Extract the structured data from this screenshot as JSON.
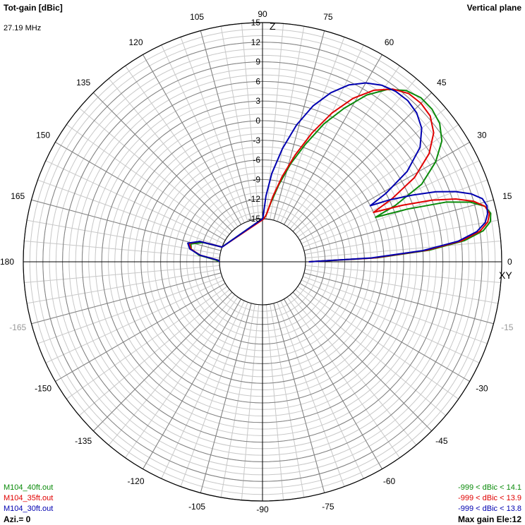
{
  "header": {
    "left_title": "Tot-gain [dBic]",
    "frequency": "27.19 MHz",
    "right_title": "Vertical plane"
  },
  "footer": {
    "azimuth": "Azi.= 0",
    "max_gain": "Max gain Ele:12"
  },
  "axis_letters": {
    "vertical": "Z",
    "horizontal": "XY"
  },
  "colors": {
    "green": "#0a8a0a",
    "red": "#e00000",
    "blue": "#0000b0",
    "grid": "#c8c8c8",
    "axis": "#000000",
    "faded_label": "#999999"
  },
  "chart_data": {
    "type": "polar",
    "radial_unit": "dBic",
    "radial_range": [
      -15,
      15
    ],
    "radial_ticks": [
      "-15",
      "-12",
      "-9",
      "-6",
      "-3",
      "0",
      "3",
      "6",
      "9",
      "12",
      "15"
    ],
    "angle_ticks": [
      {
        "deg": 0,
        "label": "0"
      },
      {
        "deg": 15,
        "label": "15"
      },
      {
        "deg": 30,
        "label": "30"
      },
      {
        "deg": 45,
        "label": "45"
      },
      {
        "deg": 60,
        "label": "60"
      },
      {
        "deg": 75,
        "label": "75"
      },
      {
        "deg": 90,
        "label": "90"
      },
      {
        "deg": 105,
        "label": "105"
      },
      {
        "deg": 120,
        "label": "120"
      },
      {
        "deg": 135,
        "label": "135"
      },
      {
        "deg": 150,
        "label": "150"
      },
      {
        "deg": 165,
        "label": "165"
      },
      {
        "deg": 180,
        "label": "180"
      },
      {
        "deg": -165,
        "label": "-165",
        "faded": true
      },
      {
        "deg": -150,
        "label": "-150"
      },
      {
        "deg": -135,
        "label": "-135"
      },
      {
        "deg": -120,
        "label": "-120"
      },
      {
        "deg": -105,
        "label": "-105"
      },
      {
        "deg": -90,
        "label": "-90"
      },
      {
        "deg": -75,
        "label": "-75"
      },
      {
        "deg": -60,
        "label": "-60"
      },
      {
        "deg": -45,
        "label": "-45"
      },
      {
        "deg": -30,
        "label": "-30"
      },
      {
        "deg": -15,
        "label": "-15",
        "faded": true
      }
    ],
    "grid": true,
    "series": [
      {
        "name": "M104_40ft.out",
        "range_label": "-999 < dBic < 14.1",
        "color": "#0a8a0a",
        "points": [
          [
            0,
            -14.5
          ],
          [
            2,
            -4
          ],
          [
            4,
            4
          ],
          [
            6,
            9.5
          ],
          [
            8,
            12.5
          ],
          [
            10,
            13.8
          ],
          [
            12,
            14.1
          ],
          [
            14,
            13.5
          ],
          [
            16,
            11.5
          ],
          [
            18,
            8
          ],
          [
            20,
            2
          ],
          [
            21.5,
            -3
          ],
          [
            23,
            0.5
          ],
          [
            26,
            5.5
          ],
          [
            30,
            9
          ],
          [
            34,
            11.5
          ],
          [
            38,
            12.8
          ],
          [
            42,
            13.3
          ],
          [
            46,
            13.3
          ],
          [
            50,
            12.6
          ],
          [
            54,
            11
          ],
          [
            58,
            8.5
          ],
          [
            62,
            5
          ],
          [
            66,
            1.5
          ],
          [
            70,
            -2.5
          ],
          [
            74,
            -6
          ],
          [
            78,
            -9.5
          ],
          [
            82,
            -12.5
          ],
          [
            86,
            -14.6
          ],
          [
            90,
            -15
          ],
          [
            160,
            -15
          ],
          [
            162,
            -12
          ],
          [
            166,
            -10.3
          ],
          [
            170,
            -10.5
          ],
          [
            174,
            -11.8
          ],
          [
            178,
            -14.5
          ],
          [
            180,
            -15
          ]
        ]
      },
      {
        "name": "M104_35ft.out",
        "range_label": "-999 < dBic < 13.9",
        "color": "#e00000",
        "points": [
          [
            0,
            -14.5
          ],
          [
            2,
            -4.5
          ],
          [
            4,
            3.5
          ],
          [
            6,
            9
          ],
          [
            8,
            12
          ],
          [
            10,
            13.4
          ],
          [
            12,
            13.9
          ],
          [
            14,
            13.5
          ],
          [
            16,
            12
          ],
          [
            18,
            9.5
          ],
          [
            20,
            6
          ],
          [
            22,
            1.5
          ],
          [
            24,
            -3
          ],
          [
            26,
            0.5
          ],
          [
            29,
            5
          ],
          [
            33,
            8.8
          ],
          [
            37,
            11.2
          ],
          [
            41,
            12.4
          ],
          [
            45,
            12.7
          ],
          [
            49,
            12.5
          ],
          [
            53,
            11.5
          ],
          [
            57,
            9.7
          ],
          [
            61,
            7
          ],
          [
            65,
            3.5
          ],
          [
            69,
            -0.5
          ],
          [
            73,
            -4.5
          ],
          [
            77,
            -8.2
          ],
          [
            81,
            -11.5
          ],
          [
            85,
            -14.2
          ],
          [
            88,
            -15
          ],
          [
            160,
            -15
          ],
          [
            162,
            -11.5
          ],
          [
            166,
            -10
          ],
          [
            170,
            -10.5
          ],
          [
            174,
            -12
          ],
          [
            178,
            -14.8
          ],
          [
            180,
            -15
          ]
        ]
      },
      {
        "name": "M104_30ft.out",
        "range_label": "-999 < dBic < 13.8",
        "color": "#0000b0",
        "points": [
          [
            0,
            -14.5
          ],
          [
            2,
            -5
          ],
          [
            4,
            3
          ],
          [
            6,
            8.5
          ],
          [
            8,
            11.5
          ],
          [
            10,
            13
          ],
          [
            12,
            13.6
          ],
          [
            14,
            13.8
          ],
          [
            16,
            13.4
          ],
          [
            18,
            12
          ],
          [
            20,
            9.8
          ],
          [
            22,
            7
          ],
          [
            24,
            3.5
          ],
          [
            26,
            0
          ],
          [
            27.5,
            -3
          ],
          [
            29,
            0
          ],
          [
            32,
            4.5
          ],
          [
            36,
            8.2
          ],
          [
            40,
            10.2
          ],
          [
            44,
            11.2
          ],
          [
            48,
            11.6
          ],
          [
            52,
            11.5
          ],
          [
            56,
            11
          ],
          [
            60,
            10
          ],
          [
            64,
            8.5
          ],
          [
            68,
            6.3
          ],
          [
            72,
            3.5
          ],
          [
            76,
            0
          ],
          [
            80,
            -4
          ],
          [
            84,
            -8
          ],
          [
            87,
            -11.5
          ],
          [
            89,
            -14.5
          ],
          [
            90,
            -15
          ],
          [
            160,
            -15
          ],
          [
            162,
            -11.5
          ],
          [
            166,
            -9.8
          ],
          [
            170,
            -10.3
          ],
          [
            174,
            -12
          ],
          [
            178,
            -14.8
          ],
          [
            180,
            -15
          ]
        ]
      }
    ]
  }
}
